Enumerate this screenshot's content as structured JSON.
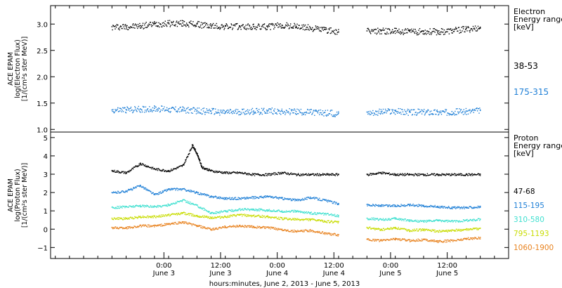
{
  "chart_data": [
    {
      "type": "scatter",
      "ylabel_lines": [
        "ACE EPAM",
        "log(Electron Flux)",
        "[1/(cm²s ster MeV)]"
      ],
      "ylim": [
        0.95,
        3.35
      ],
      "yticks": [
        1.0,
        1.5,
        2.0,
        2.5,
        3.0
      ],
      "ytick_labels": [
        "1.0",
        "1.5",
        "2.0",
        "2.5",
        "3.0"
      ],
      "legend_title": [
        "Electron",
        "Energy range",
        "[keV]"
      ],
      "series": [
        {
          "name": "38-53",
          "color": "#000000",
          "x": [
            0,
            3,
            6,
            9,
            12,
            15,
            18,
            21,
            24,
            27,
            30,
            33,
            36,
            39,
            42,
            45,
            48,
            51,
            54,
            57,
            60,
            63,
            66,
            69,
            72,
            75,
            78
          ],
          "y": [
            2.95,
            2.96,
            2.97,
            3.01,
            3.02,
            3.02,
            3.0,
            2.97,
            2.96,
            2.96,
            2.95,
            2.96,
            2.98,
            2.96,
            2.93,
            2.9,
            2.85,
            null,
            2.87,
            2.88,
            2.87,
            2.86,
            2.87,
            2.86,
            2.88,
            2.91,
            2.94
          ]
        },
        {
          "name": "175-315",
          "color": "#1e7fd6",
          "x": [
            0,
            3,
            6,
            9,
            12,
            15,
            18,
            21,
            24,
            27,
            30,
            33,
            36,
            39,
            42,
            45,
            48,
            51,
            54,
            57,
            60,
            63,
            66,
            69,
            72,
            75,
            78
          ],
          "y": [
            1.37,
            1.38,
            1.39,
            1.4,
            1.39,
            1.38,
            1.36,
            1.35,
            1.33,
            1.34,
            1.35,
            1.36,
            1.35,
            1.34,
            1.33,
            1.32,
            1.31,
            null,
            1.33,
            1.34,
            1.35,
            1.33,
            1.34,
            1.33,
            1.34,
            1.35,
            1.36
          ]
        }
      ]
    },
    {
      "type": "scatter",
      "ylabel_lines": [
        "ACE EPAM",
        "log(Proton Flux)",
        "[1/(cm²s ster MeV)]"
      ],
      "ylim": [
        -1.6,
        5.3
      ],
      "yticks": [
        -1,
        0,
        1,
        2,
        3,
        4,
        5
      ],
      "ytick_labels": [
        "−1",
        "0",
        "1",
        "2",
        "3",
        "4",
        "5"
      ],
      "legend_title": [
        "Proton",
        "Energy range",
        "[keV]"
      ],
      "series": [
        {
          "name": "47-68",
          "color": "#000000",
          "x": [
            0,
            3,
            6,
            9,
            12,
            15,
            17,
            18,
            19,
            21,
            24,
            27,
            30,
            33,
            36,
            39,
            42,
            45,
            48,
            51,
            54,
            57,
            60,
            63,
            66,
            69,
            72,
            75,
            78
          ],
          "y": [
            3.2,
            3.1,
            3.6,
            3.3,
            3.2,
            3.5,
            4.6,
            4.1,
            3.4,
            3.2,
            3.1,
            3.1,
            3.0,
            3.0,
            3.1,
            3.0,
            3.0,
            3.0,
            3.0,
            null,
            3.0,
            3.1,
            3.0,
            3.0,
            3.0,
            3.0,
            3.0,
            3.0,
            3.0
          ]
        },
        {
          "name": "115-195",
          "color": "#1e7fd6",
          "x": [
            0,
            3,
            6,
            9,
            12,
            15,
            18,
            21,
            24,
            27,
            30,
            33,
            36,
            39,
            42,
            45,
            48,
            51,
            54,
            57,
            60,
            63,
            66,
            69,
            72,
            75,
            78
          ],
          "y": [
            2.0,
            2.1,
            2.4,
            1.9,
            2.2,
            2.2,
            2.0,
            1.8,
            1.7,
            1.7,
            1.75,
            1.8,
            1.7,
            1.6,
            1.75,
            1.6,
            1.4,
            null,
            1.35,
            1.3,
            1.3,
            1.35,
            1.3,
            1.25,
            1.2,
            1.2,
            1.25
          ]
        },
        {
          "name": "310-580",
          "color": "#40e0d0",
          "x": [
            0,
            3,
            6,
            9,
            12,
            15,
            18,
            21,
            24,
            27,
            30,
            33,
            36,
            39,
            42,
            45,
            48,
            51,
            54,
            57,
            60,
            63,
            66,
            69,
            72,
            75,
            78
          ],
          "y": [
            1.2,
            1.25,
            1.3,
            1.25,
            1.35,
            1.6,
            1.3,
            0.9,
            1.0,
            1.1,
            1.1,
            1.05,
            1.0,
            1.0,
            0.9,
            0.85,
            0.75,
            null,
            0.6,
            0.55,
            0.6,
            0.5,
            0.45,
            0.5,
            0.45,
            0.5,
            0.55
          ]
        },
        {
          "name": "795-1193",
          "color": "#c8dc00",
          "x": [
            0,
            3,
            6,
            9,
            12,
            15,
            18,
            21,
            24,
            27,
            30,
            33,
            36,
            39,
            42,
            45,
            48,
            51,
            54,
            57,
            60,
            63,
            66,
            69,
            72,
            75,
            78
          ],
          "y": [
            0.6,
            0.6,
            0.7,
            0.7,
            0.8,
            0.9,
            0.75,
            0.65,
            0.7,
            0.8,
            0.75,
            0.7,
            0.6,
            0.55,
            0.55,
            0.45,
            0.4,
            null,
            0.1,
            0.0,
            0.1,
            -0.05,
            0.0,
            -0.1,
            -0.05,
            0.0,
            0.05
          ]
        },
        {
          "name": "1060-1900",
          "color": "#e8821e",
          "x": [
            0,
            3,
            6,
            9,
            12,
            15,
            18,
            21,
            24,
            27,
            30,
            33,
            36,
            39,
            42,
            45,
            48,
            51,
            54,
            57,
            60,
            63,
            66,
            69,
            72,
            75,
            78
          ],
          "y": [
            0.1,
            0.1,
            0.2,
            0.2,
            0.3,
            0.4,
            0.2,
            0.0,
            0.15,
            0.2,
            0.15,
            0.1,
            0.0,
            -0.1,
            -0.05,
            -0.2,
            -0.3,
            null,
            -0.55,
            -0.6,
            -0.5,
            -0.6,
            -0.55,
            -0.65,
            -0.6,
            -0.5,
            -0.45
          ]
        }
      ]
    }
  ],
  "x_axis": {
    "xlim": [
      -13,
      84
    ],
    "ticks": [
      {
        "x": 11,
        "time": "0:00",
        "date": "June 3"
      },
      {
        "x": 23,
        "time": "12:00",
        "date": "June 3"
      },
      {
        "x": 35,
        "time": "0:00",
        "date": "June 4"
      },
      {
        "x": 47,
        "time": "12:00",
        "date": "June 4"
      },
      {
        "x": 59,
        "time": "0:00",
        "date": "June 5"
      },
      {
        "x": 71,
        "time": "12:00",
        "date": "June 5"
      }
    ],
    "minor_step": 3,
    "xlabel": "hours:minutes, June  2, 2013 - June  5, 2013"
  }
}
